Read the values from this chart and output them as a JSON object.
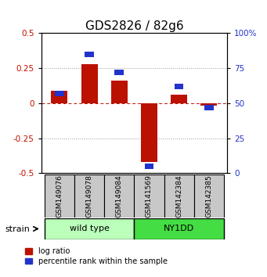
{
  "title": "GDS2826 / 82g6",
  "samples": [
    "GSM149076",
    "GSM149078",
    "GSM149084",
    "GSM141569",
    "GSM142384",
    "GSM142385"
  ],
  "log_ratios": [
    0.09,
    0.28,
    0.16,
    -0.42,
    0.06,
    -0.02
  ],
  "percentile_ranks": [
    57,
    85,
    72,
    5,
    62,
    47
  ],
  "groups": [
    {
      "label": "wild type",
      "indices": [
        0,
        1,
        2
      ],
      "color": "#bbffbb"
    },
    {
      "label": "NY1DD",
      "indices": [
        3,
        4,
        5
      ],
      "color": "#44dd44"
    }
  ],
  "strain_label": "strain",
  "ylim": [
    -0.5,
    0.5
  ],
  "yticks_left": [
    -0.5,
    -0.25,
    0,
    0.25,
    0.5
  ],
  "yticks_right": [
    0,
    25,
    50,
    75,
    100
  ],
  "bar_width": 0.55,
  "red_color": "#bb1100",
  "blue_color": "#2233cc",
  "dot_color": "#333333",
  "background_color": "#ffffff",
  "legend_red": "log ratio",
  "legend_blue": "percentile rank within the sample",
  "title_fontsize": 11,
  "tick_fontsize": 7.5,
  "sample_fontsize": 6.5,
  "legend_fontsize": 7,
  "strain_fontsize": 8
}
